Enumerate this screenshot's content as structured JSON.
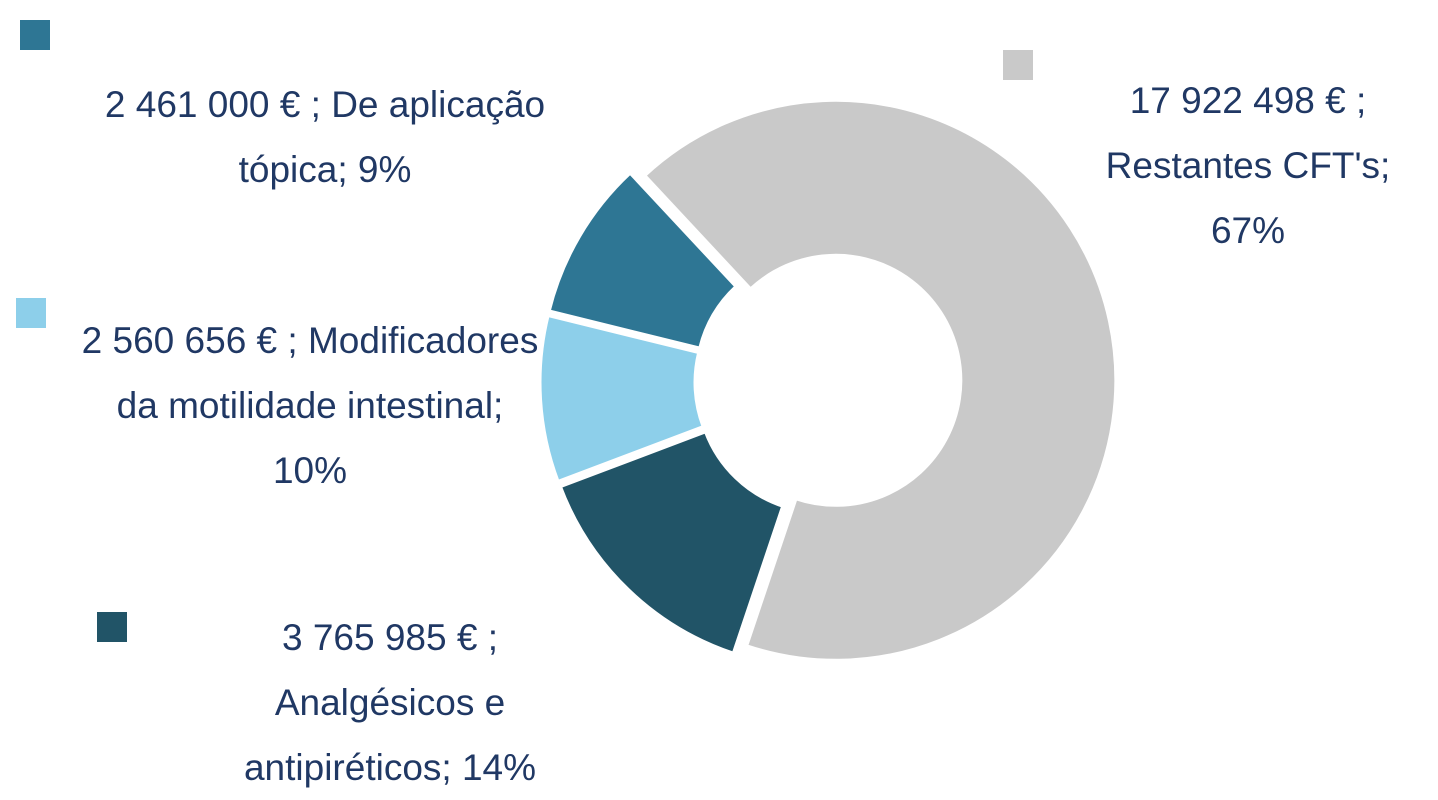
{
  "chart_data": {
    "type": "donut",
    "categories": [
      "Restantes CFT's;",
      "Analgésicos e antipiréticos;",
      "Modificadores da motilidade intestinal;",
      "De aplicação tópica;"
    ],
    "values": [
      17922498,
      3765985,
      2560656,
      2461000
    ],
    "value_labels": [
      "17 922 498 € ;",
      "3 765 985 € ;",
      "2 560 656 € ;",
      "2 461 000 € ;"
    ],
    "percent_labels": [
      "67%",
      "14%",
      "10%",
      "9%"
    ],
    "colors": [
      "#c9c9c9",
      "#215467",
      "#8dcfea",
      "#2e7694"
    ]
  }
}
